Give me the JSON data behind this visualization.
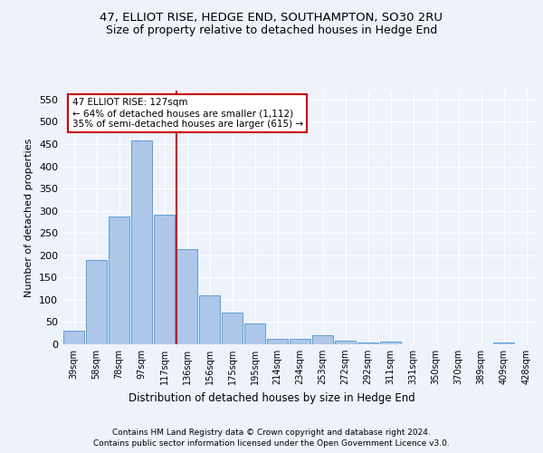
{
  "title1": "47, ELLIOT RISE, HEDGE END, SOUTHAMPTON, SO30 2RU",
  "title2": "Size of property relative to detached houses in Hedge End",
  "xlabel": "Distribution of detached houses by size in Hedge End",
  "ylabel": "Number of detached properties",
  "categories": [
    "39sqm",
    "58sqm",
    "78sqm",
    "97sqm",
    "117sqm",
    "136sqm",
    "156sqm",
    "175sqm",
    "195sqm",
    "214sqm",
    "234sqm",
    "253sqm",
    "272sqm",
    "292sqm",
    "311sqm",
    "331sqm",
    "350sqm",
    "370sqm",
    "389sqm",
    "409sqm",
    "428sqm"
  ],
  "values": [
    30,
    190,
    287,
    458,
    292,
    213,
    110,
    72,
    46,
    13,
    12,
    21,
    8,
    4,
    6,
    0,
    0,
    0,
    0,
    5,
    0
  ],
  "bar_color": "#aec6e8",
  "bar_edge_color": "#5a9fd4",
  "vline_color": "#cc0000",
  "annotation_text": "47 ELLIOT RISE: 127sqm\n← 64% of detached houses are smaller (1,112)\n35% of semi-detached houses are larger (615) →",
  "annotation_box_color": "#ffffff",
  "annotation_box_edge": "#cc0000",
  "ylim": [
    0,
    570
  ],
  "yticks": [
    0,
    50,
    100,
    150,
    200,
    250,
    300,
    350,
    400,
    450,
    500,
    550
  ],
  "footer1": "Contains HM Land Registry data © Crown copyright and database right 2024.",
  "footer2": "Contains public sector information licensed under the Open Government Licence v3.0.",
  "bg_color": "#eef2fb",
  "plot_bg_color": "#eef2fb",
  "grid_color": "#ffffff"
}
